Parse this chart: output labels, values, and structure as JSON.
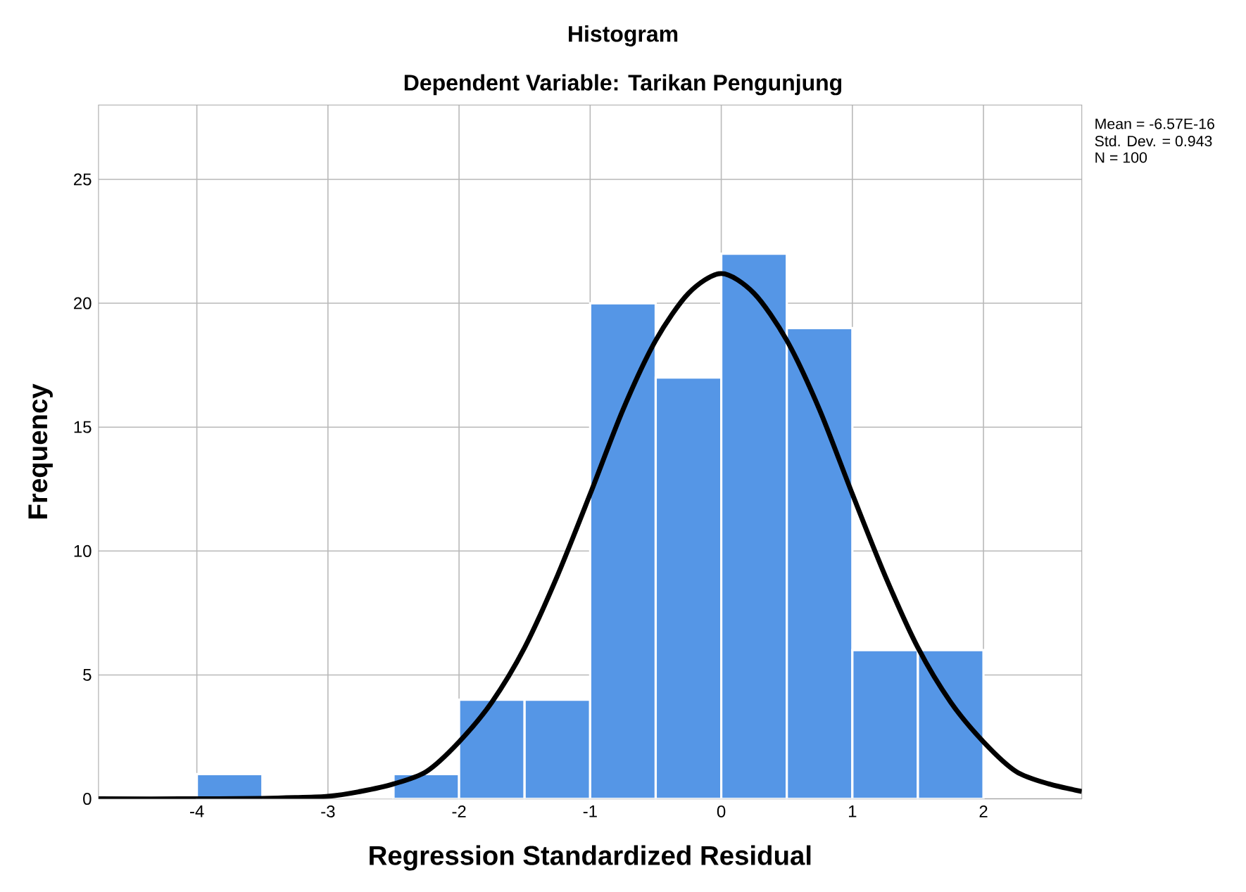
{
  "chart_data": {
    "type": "histogram",
    "title": "Histogram",
    "subtitle": "Dependent Variable: Tarikan Pengunjung",
    "xlabel": "Regression Standardized Residual",
    "ylabel": "Frequency",
    "annotations": [
      "Mean = -6.57E-16",
      "Std. Dev. = 0.943",
      "N = 100"
    ],
    "bins": [
      -4,
      -3.5,
      -3,
      -2.5,
      -2,
      -1.5,
      -1,
      -0.5,
      0,
      0.5,
      1,
      1.5,
      2
    ],
    "values": [
      1,
      0,
      0,
      1,
      4,
      4,
      20,
      17,
      22,
      19,
      6,
      6
    ],
    "color": "#5596e6",
    "series": [
      {
        "type": "line",
        "color": "#000000",
        "x": [
          -4.75,
          -4,
          -3.5,
          -3.25,
          -3,
          -2.75,
          -2.5,
          -2.25,
          -2,
          -1.75,
          -1.5,
          -1.25,
          -1,
          -0.75,
          -0.5,
          -0.25,
          0,
          0.25,
          0.5,
          0.75,
          1,
          1.25,
          1.5,
          1.75,
          2,
          2.25,
          2.5,
          2.75
        ],
        "values": [
          0,
          0,
          0.02,
          0.05,
          0.1,
          0.3,
          0.6,
          1.1,
          2.3,
          3.9,
          6.1,
          9.0,
          12.3,
          15.7,
          18.5,
          20.4,
          21.2,
          20.4,
          18.5,
          15.7,
          12.3,
          9.0,
          6.1,
          3.9,
          2.3,
          1.1,
          0.6,
          0.3
        ]
      }
    ],
    "xlim": [
      -4.75,
      2.75
    ],
    "ylim": [
      0,
      28
    ],
    "xticks": [
      -4,
      -3,
      -2,
      -1,
      0,
      1,
      2
    ],
    "yticks": [
      0,
      5,
      10,
      15,
      20,
      25
    ],
    "grid": true
  }
}
